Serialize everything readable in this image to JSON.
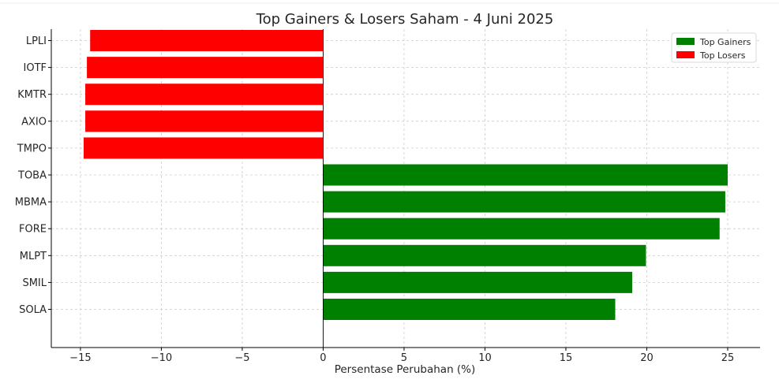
{
  "chart_data": {
    "type": "bar",
    "orientation": "horizontal",
    "title": "Top Gainers & Losers Saham - 4 Juni 2025",
    "xlabel": "Persentase Perubahan (%)",
    "ylabel": "",
    "xlim": [
      -16.8,
      27.0
    ],
    "x_ticks": [
      {
        "value": -15,
        "label": "−15"
      },
      {
        "value": -10,
        "label": "−10"
      },
      {
        "value": -5,
        "label": "−5"
      },
      {
        "value": 0,
        "label": "0"
      },
      {
        "value": 5,
        "label": "5"
      },
      {
        "value": 10,
        "label": "10"
      },
      {
        "value": 15,
        "label": "15"
      },
      {
        "value": 20,
        "label": "20"
      },
      {
        "value": 25,
        "label": "25"
      }
    ],
    "grid": true,
    "legend_position": "top-right",
    "categories": [
      "SOLA",
      "SMIL",
      "MLPT",
      "FORE",
      "MBMA",
      "TOBA",
      "TMPO",
      "AXIO",
      "KMTR",
      "IOTF",
      "LPLI"
    ],
    "series": [
      {
        "name": "Top Gainers",
        "color": "#008000",
        "values": [
          18.05,
          19.1,
          19.95,
          24.5,
          24.85,
          25.0,
          null,
          null,
          null,
          null,
          null
        ]
      },
      {
        "name": "Top Losers",
        "color": "#ff0000",
        "values": [
          null,
          null,
          null,
          null,
          null,
          null,
          -14.8,
          -14.7,
          -14.7,
          -14.6,
          -14.4
        ]
      }
    ]
  }
}
